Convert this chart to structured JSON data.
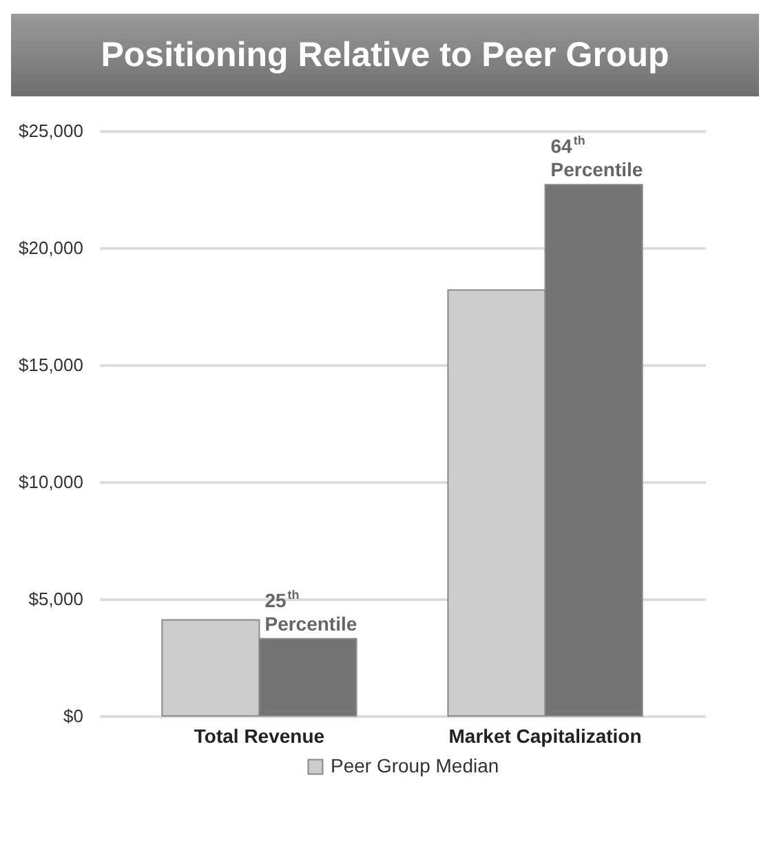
{
  "chart_data": {
    "type": "bar",
    "title": "Positioning Relative to Peer Group",
    "categories": [
      "Total Revenue",
      "Market Capitalization"
    ],
    "series": [
      {
        "name": "Peer Group Median",
        "color": "#cccccc",
        "values": [
          4100,
          18200
        ]
      },
      {
        "color": "#747474",
        "values": [
          3300,
          22700
        ]
      }
    ],
    "ylim": [
      0,
      25000
    ],
    "yticks": [
      {
        "value": 0,
        "label": "$0"
      },
      {
        "value": 5000,
        "label": "$5,000"
      },
      {
        "value": 10000,
        "label": "$10,000"
      },
      {
        "value": 15000,
        "label": "$15,000"
      },
      {
        "value": 20000,
        "label": "$20,000"
      },
      {
        "value": 25000,
        "label": "$25,000"
      }
    ],
    "grid": "y",
    "legend": "bottom",
    "annotations": [
      {
        "text": "25$^{th}$\nPercentile",
        "x": "Total Revenue",
        "y": 3300
      },
      {
        "text": "64$^{th}$\nPercentile",
        "x": "Market Capitalization",
        "y": 22700
      }
    ]
  }
}
